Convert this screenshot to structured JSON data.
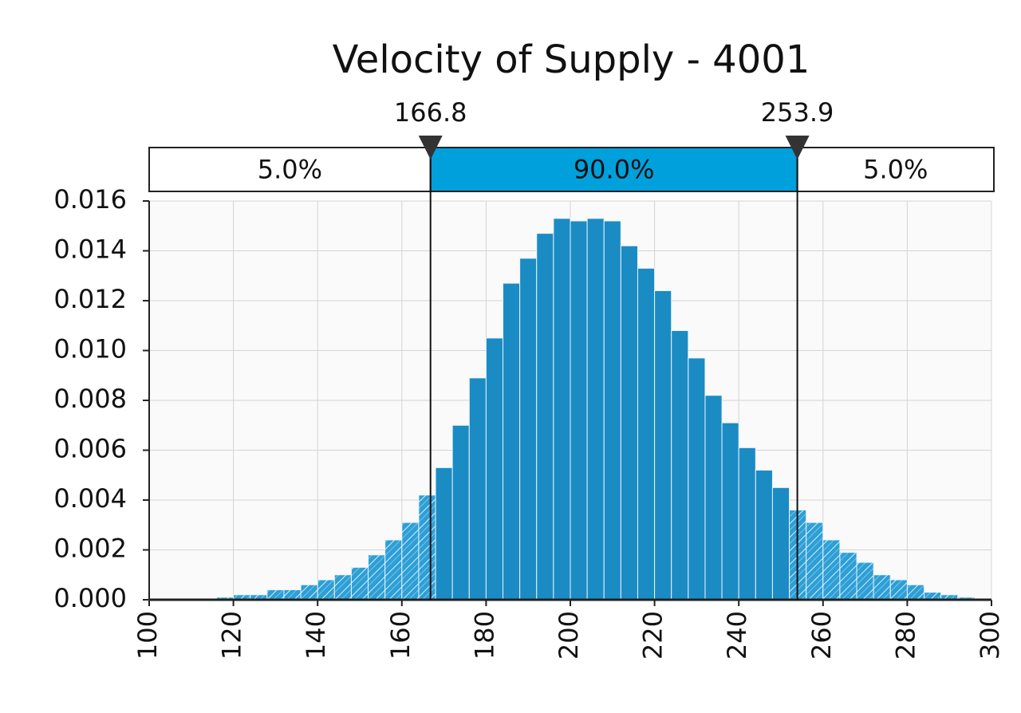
{
  "chart_data": {
    "type": "histogram",
    "title": "Velocity of Supply - 4001",
    "bins": [
      100,
      104,
      108,
      112,
      116,
      120,
      124,
      128,
      132,
      136,
      140,
      144,
      148,
      152,
      156,
      160,
      164,
      168,
      172,
      176,
      180,
      184,
      188,
      192,
      196,
      200,
      204,
      208,
      212,
      216,
      220,
      224,
      228,
      232,
      236,
      240,
      244,
      248,
      252,
      256,
      260,
      264,
      268,
      272,
      276,
      280,
      284,
      288,
      292,
      296,
      300
    ],
    "values": [
      5e-05,
      5e-05,
      5e-05,
      5e-05,
      0.0001,
      0.0002,
      0.0002,
      0.0004,
      0.0004,
      0.0006,
      0.0008,
      0.001,
      0.0013,
      0.0018,
      0.0024,
      0.0031,
      0.0042,
      0.0053,
      0.007,
      0.0089,
      0.0105,
      0.0127,
      0.0137,
      0.0147,
      0.0153,
      0.0152,
      0.0153,
      0.0152,
      0.0142,
      0.0133,
      0.0124,
      0.0108,
      0.0097,
      0.0082,
      0.0071,
      0.0061,
      0.0052,
      0.0045,
      0.0036,
      0.0031,
      0.0024,
      0.0019,
      0.0015,
      0.001,
      0.0008,
      0.0006,
      0.0003,
      0.0002,
      0.0001,
      5e-05
    ],
    "color": "#1b8bc4",
    "band_color": "#00a0dc",
    "markers": [
      166.8,
      253.9
    ],
    "band": {
      "values": [
        5.0,
        90.0,
        5.0
      ],
      "value_labels": [
        "5.0%",
        "90.0%",
        "5.0%"
      ]
    },
    "xlim": [
      100,
      300
    ],
    "xticks": [
      100,
      120,
      140,
      160,
      180,
      200,
      220,
      240,
      260,
      280,
      300
    ],
    "ylim": [
      0,
      0.016
    ],
    "yticks": [
      {
        "value": 0,
        "label": "0.000"
      },
      {
        "value": 0.002,
        "label": "0.002"
      },
      {
        "value": 0.004,
        "label": "0.004"
      },
      {
        "value": 0.006,
        "label": "0.006"
      },
      {
        "value": 0.008,
        "label": "0.008"
      },
      {
        "value": 0.01,
        "label": "0.010"
      },
      {
        "value": 0.012,
        "label": "0.012"
      },
      {
        "value": 0.014,
        "label": "0.014"
      },
      {
        "value": 0.016,
        "label": "0.016"
      }
    ],
    "grid": true
  }
}
